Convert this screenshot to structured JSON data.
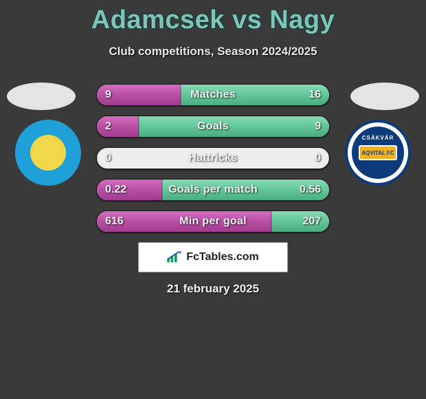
{
  "title": "Adamcsek vs Nagy",
  "subtitle": "Club competitions, Season 2024/2025",
  "date": "21 february 2025",
  "footer_brand": "FcTables.com",
  "colors": {
    "title_color": "#7ec4b8",
    "background": "#3a3a3a",
    "bar_left_fill": "#b84fa4",
    "bar_right_fill": "#62c79a",
    "bar_track": "#ededed"
  },
  "players": {
    "left": {
      "name": "Adamcsek",
      "club_primary": "#1fa0d8",
      "club_secondary": "#f4e54a"
    },
    "right": {
      "name": "Nagy",
      "club_primary": "#0d3a7a",
      "club_secondary": "#f2b21f",
      "club_label_top": "CSÁKVÁR",
      "club_label_mid": "AQVITAL FC"
    }
  },
  "stats": [
    {
      "label": "Matches",
      "left_value": "9",
      "right_value": "16",
      "left_pct": 36,
      "right_pct": 64
    },
    {
      "label": "Goals",
      "left_value": "2",
      "right_value": "9",
      "left_pct": 18,
      "right_pct": 82
    },
    {
      "label": "Hattricks",
      "left_value": "0",
      "right_value": "0",
      "left_pct": 0,
      "right_pct": 0
    },
    {
      "label": "Goals per match",
      "left_value": "0.22",
      "right_value": "0.56",
      "left_pct": 28,
      "right_pct": 72
    },
    {
      "label": "Min per goal",
      "left_value": "616",
      "right_value": "207",
      "left_pct": 75,
      "right_pct": 25
    }
  ]
}
